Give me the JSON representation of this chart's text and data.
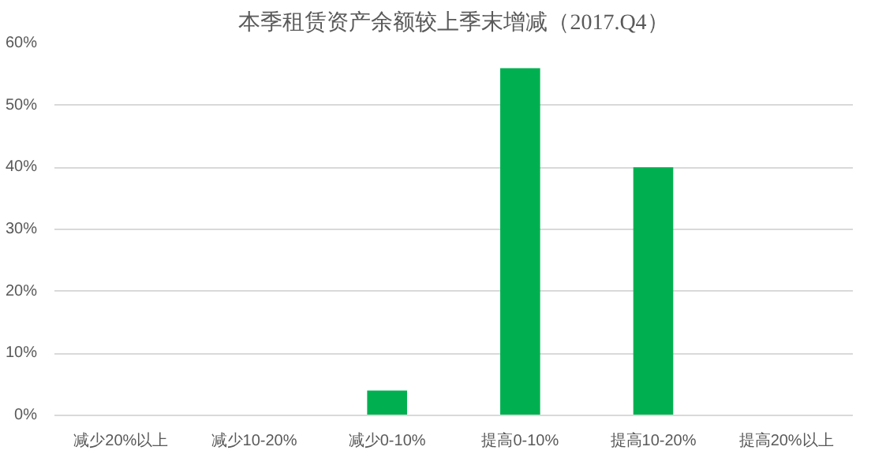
{
  "chart_data": {
    "type": "bar",
    "title": "本季租赁资产余额较上季末增减（2017.Q4）",
    "categories": [
      "减少20%以上",
      "减少10-20%",
      "减少0-10%",
      "提高0-10%",
      "提高10-20%",
      "提高20%以上"
    ],
    "values": [
      0,
      0,
      4,
      56,
      40,
      0
    ],
    "color": "#00b050",
    "ylim": [
      0,
      60
    ],
    "yticks": [
      {
        "value": 0,
        "label": "0%"
      },
      {
        "value": 10,
        "label": "10%"
      },
      {
        "value": 20,
        "label": "20%"
      },
      {
        "value": 30,
        "label": "30%"
      },
      {
        "value": 40,
        "label": "40%"
      },
      {
        "value": 50,
        "label": "50%"
      },
      {
        "value": 60,
        "label": "60%"
      }
    ],
    "grid": "y"
  }
}
